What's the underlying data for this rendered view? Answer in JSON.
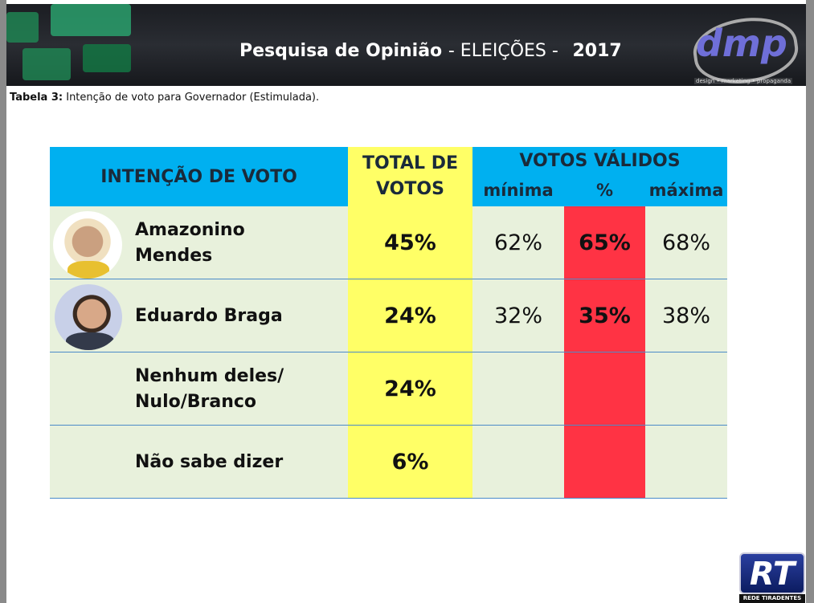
{
  "header": {
    "title": "Pesquisa de Opinião",
    "subtitle": "- ELEIÇÕES -",
    "year": "2017",
    "logo": "dmp",
    "logo_tagline": "design • marketing • propaganda"
  },
  "caption": {
    "label": "Tabela  3:",
    "text": "Intenção de voto para Governador (Estimulada)."
  },
  "table": {
    "headers": {
      "intent": "INTENÇÃO DE VOTO",
      "total": "TOTAL DE VOTOS",
      "valid": "VOTOS VÁLIDOS",
      "min": "mínima",
      "pct": "%",
      "max": "máxima"
    },
    "rows": [
      [
        "Amazonino Mendes",
        "45%",
        "62%",
        "65%",
        "68%"
      ],
      [
        "Eduardo Braga",
        "24%",
        "32%",
        "35%",
        "38%"
      ],
      [
        "Nenhum deles/ Nulo/Branco",
        "24%"
      ],
      [
        "Não sabe dizer",
        "6%"
      ]
    ]
  },
  "footer_logo": {
    "mark": "RT",
    "name": "REDE TIRADENTES"
  }
}
